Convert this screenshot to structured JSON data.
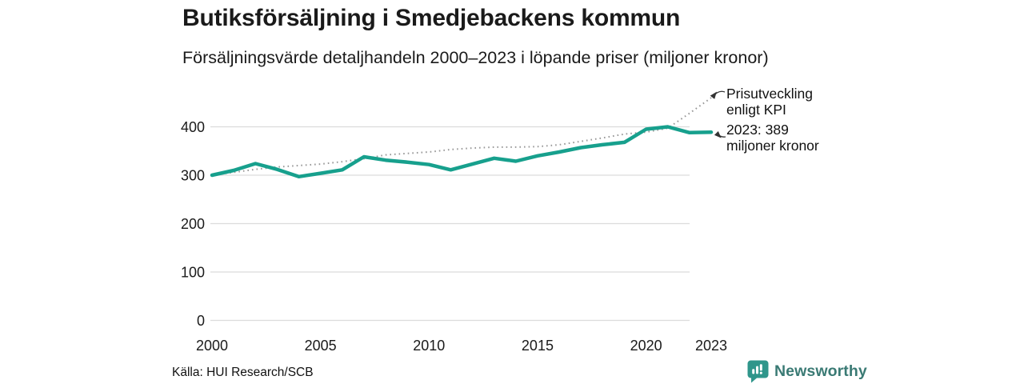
{
  "header": {
    "title": "Butiksförsäljning i Smedjebackens kommun",
    "subtitle": "Försäljningsvärde detaljhandeln 2000–2023 i löpande priser (miljoner kronor)"
  },
  "footer": {
    "source": "Källa: HUI Research/SCB",
    "brand": "Newsworthy"
  },
  "colors": {
    "sales_line": "#17a08d",
    "kpi_line": "#999999",
    "gridline": "#dcdcdc",
    "text": "#1a1a1a",
    "arrow": "#333333",
    "logo_badge": "#2f968b",
    "logo_text": "#3a7a74"
  },
  "chart_data": {
    "type": "line",
    "title": "Butiksförsäljning i Smedjebackens kommun",
    "subtitle": "Försäljningsvärde detaljhandeln 2000–2023 i löpande priser (miljoner kronor)",
    "xlabel": "",
    "ylabel": "miljoner kronor",
    "xlim": [
      2000,
      2023
    ],
    "ylim": [
      0,
      470
    ],
    "grid": true,
    "legend_position": "inline-annotations",
    "xticks": [
      2000,
      2005,
      2010,
      2015,
      2020,
      2023
    ],
    "yticks": [
      0,
      100,
      200,
      300,
      400
    ],
    "x": [
      2000,
      2001,
      2002,
      2003,
      2004,
      2005,
      2006,
      2007,
      2008,
      2009,
      2010,
      2011,
      2012,
      2013,
      2014,
      2015,
      2016,
      2017,
      2018,
      2019,
      2020,
      2021,
      2022,
      2023
    ],
    "series": [
      {
        "name": "Försäljningsvärde detaljhandeln (löpande priser)",
        "style": "solid",
        "color": "#17a08d",
        "values": [
          300,
          310,
          324,
          312,
          297,
          304,
          311,
          338,
          331,
          327,
          322,
          311,
          323,
          335,
          329,
          340,
          348,
          357,
          363,
          368,
          395,
          400,
          388,
          389
        ]
      },
      {
        "name": "Prisutveckling enligt KPI",
        "style": "dotted",
        "color": "#999999",
        "values": [
          300,
          306,
          312,
          317,
          320,
          323,
          328,
          334,
          342,
          345,
          348,
          353,
          356,
          358,
          358,
          359,
          363,
          370,
          377,
          385,
          389,
          397,
          428,
          460
        ]
      }
    ],
    "annotations": [
      {
        "target": "kpi-line-end",
        "lines": [
          "Prisutveckling",
          "enligt KPI"
        ]
      },
      {
        "target": "sales-line-end",
        "lines": [
          "2023: 389",
          "miljoner kronor"
        ]
      }
    ],
    "latest_value": {
      "year": 2023,
      "value": 389,
      "unit": "miljoner kronor"
    }
  }
}
